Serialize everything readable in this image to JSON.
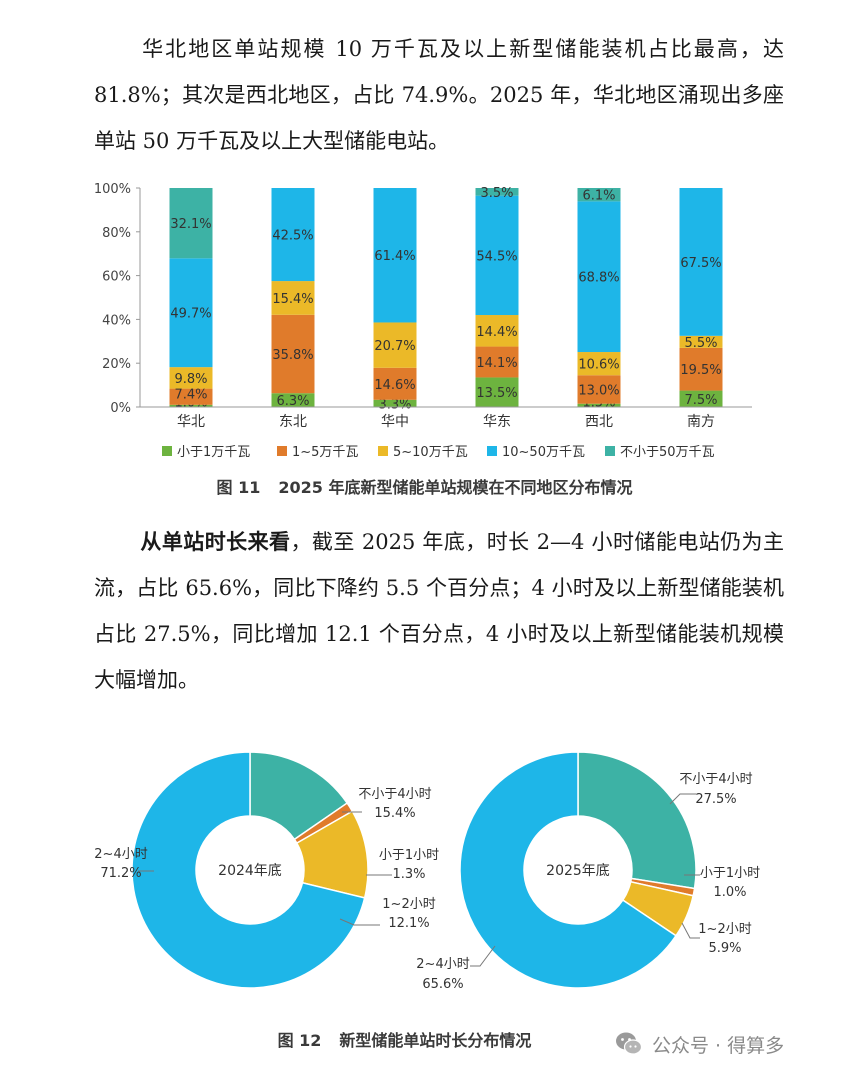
{
  "paragraph1": {
    "text": "华北地区单站规模 10 万千瓦及以上新型储能装机占比最高，达 81.8%；其次是西北地区，占比 74.9%。2025 年，华北地区涌现出多座单站 50 万千瓦及以上大型储能电站。"
  },
  "paragraph2": {
    "lead": "从单站时长来看",
    "text": "，截至 2025 年底，时长 2—4 小时储能电站仍为主流，占比 65.6%，同比下降约 5.5 个百分点；4 小时及以上新型储能装机占比 27.5%，同比增加 12.1 个百分点，4 小时及以上新型储能装机规模大幅增加。"
  },
  "figure11": {
    "caption_number": "图 11",
    "caption_text": "2025 年底新型储能单站规模在不同地区分布情况"
  },
  "figure12": {
    "caption_number": "图 12",
    "caption_text": "新型储能单站时长分布情况"
  },
  "watermark": {
    "text": "公众号 · 得算多",
    "icon": "wechat-icon"
  },
  "colors": {
    "lt1": "#6db33f",
    "1to5": "#e07b2b",
    "5to10": "#ebb928",
    "10to50": "#1eb6e8",
    "ge50": "#3db2a5"
  },
  "chart_data": [
    {
      "type": "bar",
      "stacked": true,
      "percent": true,
      "categories": [
        "华北",
        "东北",
        "华中",
        "华东",
        "西北",
        "南方"
      ],
      "ylim": [
        0,
        100
      ],
      "yticks": [
        "0%",
        "20%",
        "40%",
        "60%",
        "80%",
        "100%"
      ],
      "legend_position": "bottom",
      "series": [
        {
          "name": "小于1万千瓦",
          "color": "#6db33f",
          "values": [
            1.0,
            6.3,
            3.3,
            13.5,
            1.5,
            7.5
          ]
        },
        {
          "name": "1~5万千瓦",
          "color": "#e07b2b",
          "values": [
            7.4,
            35.8,
            14.6,
            14.1,
            13.0,
            19.5
          ]
        },
        {
          "name": "5~10万千瓦",
          "color": "#ebb928",
          "values": [
            9.8,
            15.4,
            20.7,
            14.4,
            10.6,
            5.5
          ]
        },
        {
          "name": "10~50万千瓦",
          "color": "#1eb6e8",
          "values": [
            49.7,
            42.5,
            61.4,
            54.5,
            68.8,
            67.5
          ]
        },
        {
          "name": "不小于50万千瓦",
          "color": "#3db2a5",
          "values": [
            32.1,
            0,
            0,
            3.5,
            6.1,
            0
          ]
        }
      ]
    },
    {
      "type": "pie",
      "donut": true,
      "center_label": "2024年底",
      "slices": [
        {
          "name": "不小于4小时",
          "value": 15.4,
          "label": "15.4%",
          "color": "#3db2a5"
        },
        {
          "name": "小于1小时",
          "value": 1.3,
          "label": "1.3%",
          "color": "#e07b2b"
        },
        {
          "name": "1~2小时",
          "value": 12.1,
          "label": "12.1%",
          "color": "#ebb928"
        },
        {
          "name": "2~4小时",
          "value": 71.2,
          "label": "71.2%",
          "color": "#1eb6e8"
        }
      ]
    },
    {
      "type": "pie",
      "donut": true,
      "center_label": "2025年底",
      "slices": [
        {
          "name": "不小于4小时",
          "value": 27.5,
          "label": "27.5%",
          "color": "#3db2a5"
        },
        {
          "name": "小于1小时",
          "value": 1.0,
          "label": "1.0%",
          "color": "#e07b2b"
        },
        {
          "name": "1~2小时",
          "value": 5.9,
          "label": "5.9%",
          "color": "#ebb928"
        },
        {
          "name": "2~4小时",
          "value": 65.6,
          "label": "65.6%",
          "color": "#1eb6e8"
        }
      ]
    }
  ]
}
